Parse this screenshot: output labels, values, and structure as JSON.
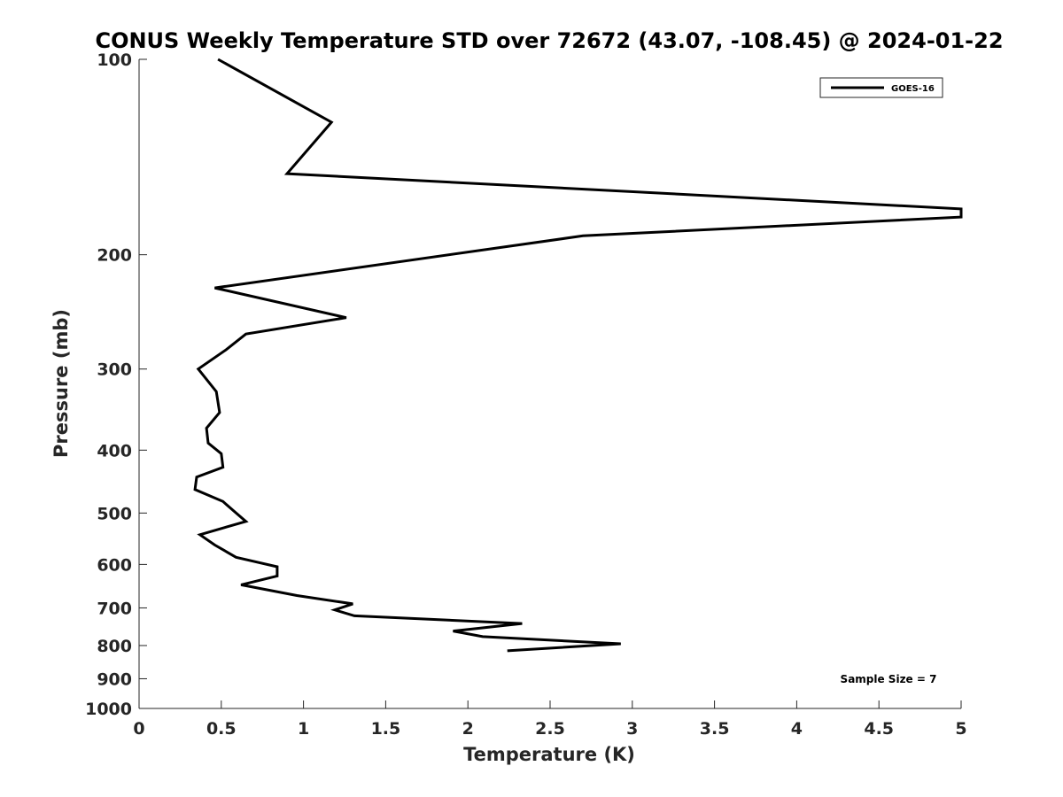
{
  "chart_data": {
    "type": "line",
    "title": "CONUS Weekly Temperature STD over 72672 (43.07, -108.45) @ 2024-01-22",
    "xlabel": "Temperature (K)",
    "ylabel": "Pressure (mb)",
    "xlim": [
      0,
      5
    ],
    "ylim": [
      100,
      1000
    ],
    "yscale": "log",
    "yreversed": true,
    "grid": false,
    "legend_position": "top-right",
    "xticks": [
      "0",
      "0.5",
      "1",
      "1.5",
      "2",
      "2.5",
      "3",
      "3.5",
      "4",
      "4.5",
      "5"
    ],
    "yticks": [
      "100",
      "200",
      "300",
      "400",
      "500",
      "600",
      "700",
      "800",
      "900",
      "1000"
    ],
    "series": [
      {
        "name": "GOES-16",
        "color": "#000000",
        "points": [
          {
            "x": 0.48,
            "p": 100
          },
          {
            "x": 1.17,
            "p": 125
          },
          {
            "x": 0.9,
            "p": 150
          },
          {
            "x": 5.0,
            "p": 170
          },
          {
            "x": 5.0,
            "p": 175
          },
          {
            "x": 2.7,
            "p": 187
          },
          {
            "x": 0.46,
            "p": 225
          },
          {
            "x": 1.26,
            "p": 250
          },
          {
            "x": 0.65,
            "p": 265
          },
          {
            "x": 0.53,
            "p": 280
          },
          {
            "x": 0.36,
            "p": 300
          },
          {
            "x": 0.47,
            "p": 325
          },
          {
            "x": 0.49,
            "p": 350
          },
          {
            "x": 0.41,
            "p": 370
          },
          {
            "x": 0.42,
            "p": 390
          },
          {
            "x": 0.5,
            "p": 405
          },
          {
            "x": 0.51,
            "p": 425
          },
          {
            "x": 0.35,
            "p": 440
          },
          {
            "x": 0.34,
            "p": 460
          },
          {
            "x": 0.51,
            "p": 480
          },
          {
            "x": 0.59,
            "p": 500
          },
          {
            "x": 0.65,
            "p": 515
          },
          {
            "x": 0.37,
            "p": 540
          },
          {
            "x": 0.46,
            "p": 560
          },
          {
            "x": 0.59,
            "p": 585
          },
          {
            "x": 0.84,
            "p": 605
          },
          {
            "x": 0.84,
            "p": 625
          },
          {
            "x": 0.62,
            "p": 645
          },
          {
            "x": 0.96,
            "p": 670
          },
          {
            "x": 1.3,
            "p": 690
          },
          {
            "x": 1.19,
            "p": 705
          },
          {
            "x": 1.31,
            "p": 720
          },
          {
            "x": 2.33,
            "p": 740
          },
          {
            "x": 1.91,
            "p": 760
          },
          {
            "x": 2.09,
            "p": 775
          },
          {
            "x": 2.93,
            "p": 795
          },
          {
            "x": 2.24,
            "p": 815
          }
        ]
      }
    ],
    "annotation": "Sample Size = 7"
  }
}
